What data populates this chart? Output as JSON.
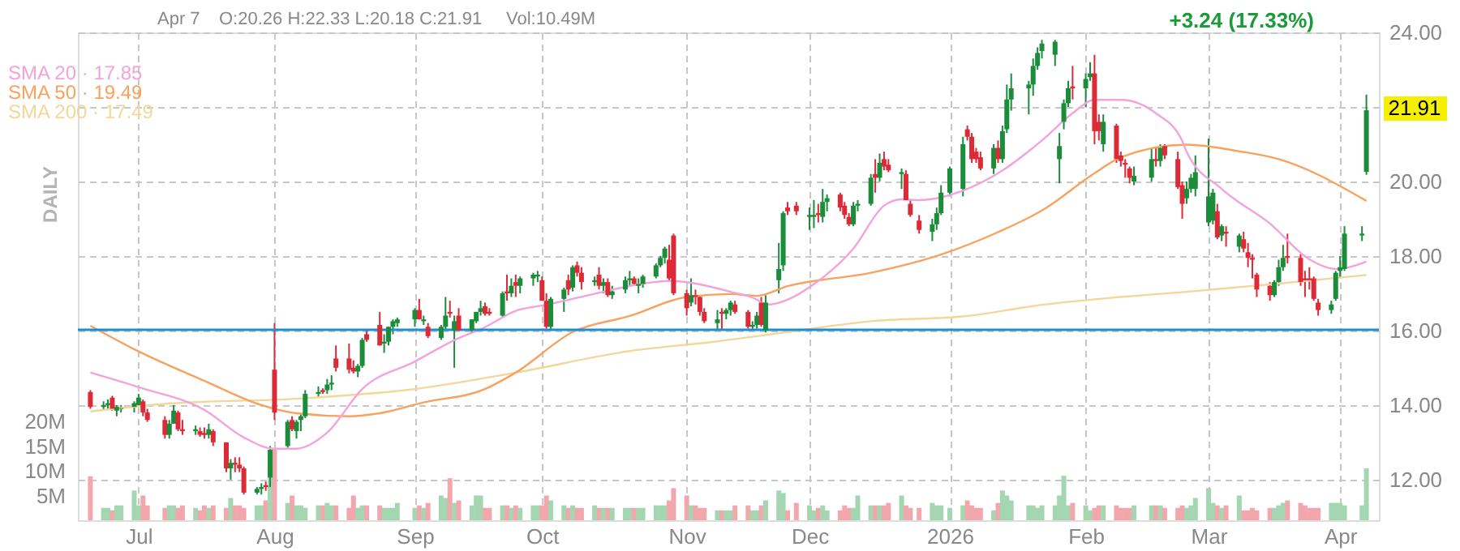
{
  "chart_data": {
    "type": "candlestick",
    "x": [
      "2025-06-20",
      "2025-06-23",
      "2025-06-24",
      "2025-06-25",
      "2025-06-26",
      "2025-06-27",
      "2025-06-30",
      "2025-07-01",
      "2025-07-02",
      "2025-07-03",
      "2025-07-07",
      "2025-07-08",
      "2025-07-09",
      "2025-07-10",
      "2025-07-11",
      "2025-07-14",
      "2025-07-15",
      "2025-07-16",
      "2025-07-17",
      "2025-07-18",
      "2025-07-21",
      "2025-07-22",
      "2025-07-23",
      "2025-07-24",
      "2025-07-25",
      "2025-07-28",
      "2025-07-29",
      "2025-07-30",
      "2025-07-31",
      "2025-08-01",
      "2025-08-04",
      "2025-08-05",
      "2025-08-06",
      "2025-08-07",
      "2025-08-08",
      "2025-08-11",
      "2025-08-12",
      "2025-08-13",
      "2025-08-14",
      "2025-08-15",
      "2025-08-18",
      "2025-08-19",
      "2025-08-20",
      "2025-08-21",
      "2025-08-22",
      "2025-08-25",
      "2025-08-26",
      "2025-08-27",
      "2025-08-28",
      "2025-08-29",
      "2025-09-02",
      "2025-09-03",
      "2025-09-04",
      "2025-09-05",
      "2025-09-08",
      "2025-09-09",
      "2025-09-10",
      "2025-09-11",
      "2025-09-12",
      "2025-09-15",
      "2025-09-16",
      "2025-09-17",
      "2025-09-18",
      "2025-09-19",
      "2025-09-22",
      "2025-09-23",
      "2025-09-24",
      "2025-09-25",
      "2025-09-26",
      "2025-09-29",
      "2025-09-30",
      "2025-10-01",
      "2025-10-02",
      "2025-10-03",
      "2025-10-06",
      "2025-10-07",
      "2025-10-08",
      "2025-10-09",
      "2025-10-10",
      "2025-10-13",
      "2025-10-14",
      "2025-10-15",
      "2025-10-16",
      "2025-10-17",
      "2025-10-20",
      "2025-10-21",
      "2025-10-22",
      "2025-10-23",
      "2025-10-24",
      "2025-10-27",
      "2025-10-28",
      "2025-10-29",
      "2025-10-30",
      "2025-10-31",
      "2025-11-03",
      "2025-11-04",
      "2025-11-05",
      "2025-11-06",
      "2025-11-07",
      "2025-11-10",
      "2025-11-11",
      "2025-11-12",
      "2025-11-13",
      "2025-11-14",
      "2025-11-17",
      "2025-11-18",
      "2025-11-19",
      "2025-11-20",
      "2025-11-21",
      "2025-11-24",
      "2025-11-25",
      "2025-11-26",
      "2025-11-28",
      "2025-12-01",
      "2025-12-02",
      "2025-12-03",
      "2025-12-04",
      "2025-12-05",
      "2025-12-08",
      "2025-12-09",
      "2025-12-10",
      "2025-12-11",
      "2025-12-12",
      "2025-12-15",
      "2025-12-16",
      "2025-12-17",
      "2025-12-18",
      "2025-12-19",
      "2025-12-22",
      "2025-12-23",
      "2025-12-24",
      "2025-12-26",
      "2025-12-29",
      "2025-12-30",
      "2025-12-31",
      "2026-01-02",
      "2026-01-05",
      "2026-01-06",
      "2026-01-07",
      "2026-01-08",
      "2026-01-09",
      "2026-01-12",
      "2026-01-13",
      "2026-01-14",
      "2026-01-15",
      "2026-01-16",
      "2026-01-20",
      "2026-01-21",
      "2026-01-22",
      "2026-01-23",
      "2026-01-26",
      "2026-01-27",
      "2026-01-28",
      "2026-01-29",
      "2026-01-30",
      "2026-02-02",
      "2026-02-03",
      "2026-02-04",
      "2026-02-05",
      "2026-02-06",
      "2026-02-09",
      "2026-02-10",
      "2026-02-11",
      "2026-02-12",
      "2026-02-13",
      "2026-02-17",
      "2026-02-18",
      "2026-02-19",
      "2026-02-20",
      "2026-02-23",
      "2026-02-24",
      "2026-02-25",
      "2026-02-26",
      "2026-02-27",
      "2026-03-02",
      "2026-03-03",
      "2026-03-04",
      "2026-03-05",
      "2026-03-06",
      "2026-03-09",
      "2026-03-10",
      "2026-03-11",
      "2026-03-12",
      "2026-03-13",
      "2026-03-16",
      "2026-03-17",
      "2026-03-18",
      "2026-03-19",
      "2026-03-20",
      "2026-03-23",
      "2026-03-24",
      "2026-03-25",
      "2026-03-26",
      "2026-03-27",
      "2026-03-30",
      "2026-03-31",
      "2026-04-01",
      "2026-04-02",
      "2026-04-06",
      "2026-04-07"
    ],
    "ohlc": [
      [
        14.35,
        14.4,
        13.9,
        13.95
      ],
      [
        13.95,
        14.1,
        13.85,
        14.0
      ],
      [
        14.0,
        14.15,
        13.9,
        14.05
      ],
      [
        14.2,
        14.25,
        13.85,
        13.9
      ],
      [
        13.85,
        14.0,
        13.7,
        13.95
      ],
      [
        13.9,
        14.0,
        13.8,
        13.92
      ],
      [
        13.95,
        14.1,
        13.8,
        14.05
      ],
      [
        14.0,
        14.3,
        13.95,
        14.2
      ],
      [
        14.1,
        14.15,
        13.7,
        13.8
      ],
      [
        13.8,
        13.9,
        13.55,
        13.6
      ],
      [
        13.6,
        13.7,
        13.1,
        13.2
      ],
      [
        13.2,
        13.6,
        13.1,
        13.5
      ],
      [
        13.5,
        14.0,
        13.5,
        13.85
      ],
      [
        13.8,
        13.85,
        13.3,
        13.35
      ],
      [
        13.35,
        13.6,
        13.2,
        13.3
      ],
      [
        13.3,
        13.45,
        13.2,
        13.35
      ],
      [
        13.3,
        13.4,
        13.15,
        13.2
      ],
      [
        13.25,
        13.4,
        13.1,
        13.2
      ],
      [
        13.2,
        13.5,
        13.1,
        13.35
      ],
      [
        13.3,
        13.35,
        12.9,
        13.0
      ],
      [
        13.0,
        13.0,
        12.2,
        12.3
      ],
      [
        12.3,
        12.55,
        12.0,
        12.45
      ],
      [
        12.45,
        12.6,
        12.2,
        12.4
      ],
      [
        12.4,
        12.6,
        12.2,
        12.3
      ],
      [
        12.3,
        12.35,
        11.6,
        11.65
      ],
      [
        11.65,
        11.8,
        11.6,
        11.75
      ],
      [
        11.75,
        11.9,
        11.6,
        11.8
      ],
      [
        11.85,
        11.95,
        11.7,
        11.8
      ],
      [
        12.05,
        12.9,
        11.8,
        12.8
      ],
      [
        14.95,
        16.2,
        13.6,
        13.8
      ],
      [
        12.9,
        13.6,
        12.85,
        13.55
      ],
      [
        13.6,
        13.7,
        13.3,
        13.35
      ],
      [
        13.3,
        13.6,
        13.1,
        13.55
      ],
      [
        13.6,
        13.75,
        13.3,
        13.7
      ],
      [
        13.7,
        14.4,
        13.65,
        14.3
      ],
      [
        14.3,
        14.5,
        14.2,
        14.35
      ],
      [
        14.4,
        14.45,
        14.3,
        14.35
      ],
      [
        14.4,
        14.7,
        14.3,
        14.55
      ],
      [
        14.55,
        14.8,
        14.4,
        14.6
      ],
      [
        15.25,
        15.6,
        14.9,
        15.0
      ],
      [
        15.25,
        15.65,
        14.85,
        14.95
      ],
      [
        15.0,
        15.2,
        14.85,
        14.9
      ],
      [
        14.9,
        15.1,
        14.75,
        15.05
      ],
      [
        15.05,
        15.8,
        15.0,
        15.75
      ],
      [
        15.9,
        16.0,
        15.7,
        15.75
      ],
      [
        16.15,
        16.5,
        15.6,
        15.6
      ],
      [
        15.65,
        15.9,
        15.4,
        15.7
      ],
      [
        15.7,
        16.1,
        15.6,
        16.1
      ],
      [
        16.1,
        16.3,
        15.9,
        16.25
      ],
      [
        16.2,
        16.35,
        16.1,
        16.3
      ],
      [
        16.3,
        16.6,
        16.1,
        16.55
      ],
      [
        16.55,
        16.85,
        16.3,
        16.3
      ],
      [
        16.25,
        16.4,
        16.15,
        16.3
      ],
      [
        16.1,
        16.2,
        15.8,
        15.85
      ],
      [
        15.8,
        16.15,
        15.75,
        16.1
      ],
      [
        16.1,
        16.9,
        16.0,
        16.4
      ],
      [
        16.5,
        16.8,
        16.35,
        16.45
      ],
      [
        16.0,
        16.4,
        15.0,
        16.25
      ],
      [
        16.4,
        16.6,
        16.0,
        16.0
      ],
      [
        16.0,
        16.3,
        15.95,
        16.3
      ],
      [
        16.25,
        16.5,
        16.2,
        16.5
      ],
      [
        16.5,
        16.8,
        16.4,
        16.6
      ],
      [
        16.65,
        16.75,
        16.4,
        16.45
      ],
      [
        16.5,
        16.6,
        16.4,
        16.45
      ],
      [
        16.4,
        17.05,
        16.35,
        17.0
      ],
      [
        17.05,
        17.5,
        16.8,
        17.0
      ],
      [
        17.0,
        17.4,
        16.9,
        17.2
      ],
      [
        17.3,
        17.5,
        16.9,
        17.2
      ],
      [
        17.2,
        17.45,
        17.0,
        17.4
      ],
      [
        17.4,
        17.55,
        17.2,
        17.5
      ],
      [
        17.45,
        17.6,
        17.3,
        17.5
      ],
      [
        17.35,
        17.45,
        16.8,
        16.8
      ],
      [
        16.8,
        17.0,
        16.05,
        16.1
      ],
      [
        16.1,
        16.9,
        16.0,
        16.85
      ],
      [
        16.85,
        17.15,
        16.5,
        17.1
      ],
      [
        17.35,
        17.5,
        16.95,
        17.1
      ],
      [
        17.15,
        17.75,
        17.05,
        17.7
      ],
      [
        17.75,
        17.85,
        17.45,
        17.55
      ],
      [
        17.55,
        17.7,
        17.1,
        17.3
      ],
      [
        17.3,
        17.45,
        17.2,
        17.35
      ],
      [
        17.5,
        17.7,
        17.1,
        17.2
      ],
      [
        17.2,
        17.4,
        17.0,
        17.3
      ],
      [
        17.3,
        17.4,
        16.9,
        16.95
      ],
      [
        16.95,
        17.2,
        16.85,
        17.05
      ],
      [
        17.1,
        17.45,
        17.0,
        17.35
      ],
      [
        17.35,
        17.6,
        17.2,
        17.4
      ],
      [
        17.4,
        17.45,
        17.2,
        17.25
      ],
      [
        17.2,
        17.4,
        17.0,
        17.25
      ],
      [
        17.25,
        17.5,
        17.15,
        17.45
      ],
      [
        17.45,
        17.8,
        17.4,
        17.75
      ],
      [
        17.75,
        18.0,
        17.7,
        17.95
      ],
      [
        17.95,
        18.25,
        17.8,
        18.2
      ],
      [
        17.9,
        18.3,
        17.3,
        17.4
      ],
      [
        18.55,
        18.6,
        16.95,
        17.0
      ],
      [
        17.0,
        17.1,
        16.4,
        16.6
      ],
      [
        16.75,
        17.4,
        16.65,
        16.95
      ],
      [
        16.95,
        17.1,
        16.7,
        16.9
      ],
      [
        16.9,
        16.95,
        16.4,
        16.5
      ],
      [
        16.5,
        16.6,
        16.2,
        16.25
      ],
      [
        16.2,
        16.55,
        16.0,
        16.3
      ],
      [
        16.5,
        16.6,
        16.0,
        16.45
      ],
      [
        16.45,
        16.6,
        16.3,
        16.55
      ],
      [
        16.55,
        16.8,
        16.4,
        16.75
      ],
      [
        16.7,
        16.8,
        16.45,
        16.5
      ],
      [
        16.5,
        16.55,
        16.05,
        16.1
      ],
      [
        16.1,
        16.25,
        16.0,
        16.15
      ],
      [
        16.15,
        16.5,
        16.05,
        16.4
      ],
      [
        16.75,
        16.9,
        16.1,
        16.15
      ],
      [
        16.0,
        16.95,
        15.95,
        16.75
      ],
      [
        17.35,
        18.35,
        17.0,
        17.65
      ],
      [
        17.75,
        19.2,
        17.6,
        19.15
      ],
      [
        19.3,
        19.45,
        19.1,
        19.2
      ],
      [
        19.35,
        19.45,
        19.1,
        19.2
      ],
      [
        19.05,
        19.3,
        18.7,
        19.1
      ],
      [
        19.05,
        19.5,
        18.75,
        19.1
      ],
      [
        19.15,
        19.4,
        18.9,
        19.1
      ],
      [
        19.05,
        19.8,
        18.9,
        19.45
      ],
      [
        19.45,
        19.65,
        19.2,
        19.55
      ],
      [
        19.65,
        19.7,
        19.2,
        19.3
      ],
      [
        19.35,
        19.45,
        19.0,
        19.1
      ],
      [
        19.05,
        19.15,
        18.8,
        18.85
      ],
      [
        18.85,
        19.45,
        18.8,
        19.35
      ],
      [
        19.35,
        19.5,
        19.2,
        19.4
      ],
      [
        19.4,
        20.2,
        19.35,
        20.1
      ],
      [
        20.2,
        20.6,
        19.7,
        20.1
      ],
      [
        20.1,
        20.75,
        20.0,
        20.5
      ],
      [
        20.6,
        20.8,
        20.3,
        20.4
      ],
      [
        20.45,
        20.6,
        20.25,
        20.3
      ],
      [
        20.2,
        20.35,
        19.8,
        20.25
      ],
      [
        20.2,
        20.3,
        19.5,
        19.5
      ],
      [
        19.4,
        19.5,
        19.05,
        19.1
      ],
      [
        18.95,
        19.1,
        18.6,
        18.7
      ],
      [
        18.65,
        19.0,
        18.4,
        18.85
      ],
      [
        18.85,
        19.3,
        18.7,
        19.15
      ],
      [
        19.15,
        19.9,
        19.1,
        19.7
      ],
      [
        19.7,
        20.4,
        19.6,
        20.35
      ],
      [
        19.8,
        21.2,
        19.6,
        21.0
      ],
      [
        21.4,
        21.5,
        21.1,
        21.2
      ],
      [
        21.2,
        21.3,
        20.5,
        20.6
      ],
      [
        20.8,
        20.9,
        20.5,
        20.6
      ],
      [
        20.65,
        20.8,
        20.3,
        20.35
      ],
      [
        20.35,
        21.0,
        20.2,
        20.9
      ],
      [
        20.9,
        21.1,
        20.5,
        20.6
      ],
      [
        20.6,
        21.5,
        20.5,
        21.35
      ],
      [
        21.4,
        22.6,
        21.3,
        22.2
      ],
      [
        22.2,
        22.9,
        21.9,
        22.5
      ],
      [
        22.5,
        22.7,
        21.8,
        22.6
      ],
      [
        22.6,
        23.3,
        22.3,
        23.1
      ],
      [
        23.1,
        23.6,
        23.0,
        23.45
      ],
      [
        23.5,
        23.8,
        23.3,
        23.7
      ],
      [
        23.4,
        23.8,
        23.1,
        23.75
      ],
      [
        20.6,
        21.3,
        19.95,
        20.95
      ],
      [
        21.6,
        22.2,
        21.4,
        22.1
      ],
      [
        22.1,
        22.7,
        22.0,
        22.5
      ],
      [
        22.55,
        23.1,
        22.2,
        22.5
      ],
      [
        22.5,
        22.9,
        22.0,
        22.75
      ],
      [
        22.8,
        23.2,
        22.7,
        22.9
      ],
      [
        22.9,
        23.4,
        21.0,
        21.35
      ],
      [
        21.6,
        21.8,
        21.1,
        21.35
      ],
      [
        21.0,
        21.8,
        20.8,
        21.6
      ],
      [
        21.5,
        21.55,
        20.5,
        20.6
      ],
      [
        20.7,
        20.8,
        20.4,
        20.55
      ],
      [
        20.5,
        20.6,
        20.1,
        20.45
      ],
      [
        20.35,
        20.4,
        19.95,
        20.1
      ],
      [
        20.0,
        20.4,
        19.9,
        20.15
      ],
      [
        20.1,
        20.9,
        20.0,
        20.6
      ],
      [
        20.6,
        20.9,
        20.4,
        20.55
      ],
      [
        20.55,
        21.0,
        20.4,
        20.9
      ],
      [
        20.95,
        21.0,
        20.6,
        20.7
      ],
      [
        20.6,
        20.8,
        19.8,
        19.85
      ],
      [
        19.9,
        20.0,
        19.0,
        19.4
      ],
      [
        19.55,
        20.0,
        19.4,
        19.8
      ],
      [
        19.8,
        20.2,
        19.7,
        20.1
      ],
      [
        19.8,
        20.7,
        19.6,
        20.25
      ],
      [
        18.9,
        21.15,
        18.8,
        19.6
      ],
      [
        18.95,
        19.8,
        18.85,
        19.7
      ],
      [
        19.2,
        19.4,
        18.45,
        18.5
      ],
      [
        18.55,
        18.85,
        18.4,
        18.8
      ],
      [
        18.65,
        18.8,
        18.25,
        18.6
      ],
      [
        18.25,
        18.6,
        18.1,
        18.55
      ],
      [
        18.45,
        18.65,
        18.1,
        18.2
      ],
      [
        18.1,
        18.35,
        17.7,
        17.95
      ],
      [
        17.95,
        18.05,
        17.4,
        17.9
      ],
      [
        17.5,
        17.55,
        16.9,
        17.1
      ],
      [
        17.2,
        17.3,
        16.8,
        16.95
      ],
      [
        16.95,
        17.35,
        16.9,
        17.3
      ],
      [
        17.3,
        17.9,
        17.2,
        17.7
      ],
      [
        17.7,
        18.3,
        17.6,
        17.95
      ],
      [
        18.0,
        18.6,
        17.8,
        17.95
      ],
      [
        17.95,
        18.05,
        17.2,
        17.3
      ],
      [
        17.4,
        17.6,
        16.9,
        17.35
      ],
      [
        17.4,
        17.7,
        17.1,
        17.35
      ],
      [
        17.4,
        17.45,
        16.8,
        16.85
      ],
      [
        16.75,
        16.85,
        16.4,
        16.55
      ],
      [
        16.55,
        16.8,
        16.45,
        16.7
      ],
      [
        16.85,
        17.6,
        16.8,
        17.55
      ],
      [
        17.6,
        18.0,
        17.4,
        17.7
      ],
      [
        17.65,
        18.8,
        17.6,
        18.6
      ],
      [
        18.55,
        18.8,
        18.4,
        18.6
      ],
      [
        20.26,
        22.33,
        20.18,
        21.91
      ]
    ],
    "colors": [
      "#dc2a36",
      "#1b8c3a",
      "#1b8c3a",
      "#dc2a36",
      "#1b8c3a",
      "#1b8c3a",
      "#1b8c3a",
      "#1b8c3a",
      "#dc2a36",
      "#dc2a36",
      "#dc2a36",
      "#1b8c3a",
      "#1b8c3a",
      "#dc2a36",
      "#dc2a36",
      "#1b8c3a",
      "#dc2a36",
      "#dc2a36",
      "#1b8c3a",
      "#dc2a36",
      "#dc2a36",
      "#1b8c3a",
      "#dc2a36",
      "#dc2a36",
      "#dc2a36",
      "#1b8c3a",
      "#1b8c3a",
      "#dc2a36",
      "#1b8c3a",
      "#dc2a36",
      "#1b8c3a",
      "#dc2a36",
      "#1b8c3a",
      "#1b8c3a",
      "#1b8c3a",
      "#1b8c3a",
      "#dc2a36",
      "#1b8c3a",
      "#1b8c3a",
      "#dc2a36",
      "#dc2a36",
      "#dc2a36",
      "#1b8c3a",
      "#1b8c3a",
      "#dc2a36",
      "#dc2a36",
      "#1b8c3a",
      "#1b8c3a",
      "#1b8c3a",
      "#1b8c3a",
      "#1b8c3a",
      "#dc2a36",
      "#1b8c3a",
      "#dc2a36",
      "#1b8c3a",
      "#1b8c3a",
      "#dc2a36",
      "#1b8c3a",
      "#dc2a36",
      "#1b8c3a",
      "#1b8c3a",
      "#1b8c3a",
      "#dc2a36",
      "#dc2a36",
      "#1b8c3a",
      "#dc2a36",
      "#1b8c3a",
      "#dc2a36",
      "#1b8c3a",
      "#1b8c3a",
      "#1b8c3a",
      "#dc2a36",
      "#dc2a36",
      "#1b8c3a",
      "#1b8c3a",
      "#dc2a36",
      "#1b8c3a",
      "#dc2a36",
      "#dc2a36",
      "#1b8c3a",
      "#dc2a36",
      "#1b8c3a",
      "#dc2a36",
      "#1b8c3a",
      "#1b8c3a",
      "#1b8c3a",
      "#dc2a36",
      "#1b8c3a",
      "#1b8c3a",
      "#1b8c3a",
      "#1b8c3a",
      "#1b8c3a",
      "#dc2a36",
      "#dc2a36",
      "#dc2a36",
      "#1b8c3a",
      "#dc2a36",
      "#dc2a36",
      "#dc2a36",
      "#1b8c3a",
      "#dc2a36",
      "#1b8c3a",
      "#1b8c3a",
      "#dc2a36",
      "#dc2a36",
      "#1b8c3a",
      "#1b8c3a",
      "#dc2a36",
      "#1b8c3a",
      "#1b8c3a",
      "#1b8c3a",
      "#dc2a36",
      "#dc2a36",
      "#1b8c3a",
      "#1b8c3a",
      "#dc2a36",
      "#1b8c3a",
      "#1b8c3a",
      "#dc2a36",
      "#dc2a36",
      "#dc2a36",
      "#1b8c3a",
      "#1b8c3a",
      "#1b8c3a",
      "#dc2a36",
      "#1b8c3a",
      "#dc2a36",
      "#dc2a36",
      "#1b8c3a",
      "#dc2a36",
      "#dc2a36",
      "#dc2a36",
      "#1b8c3a",
      "#1b8c3a",
      "#1b8c3a",
      "#1b8c3a",
      "#1b8c3a",
      "#dc2a36",
      "#dc2a36",
      "#dc2a36",
      "#dc2a36",
      "#1b8c3a",
      "#dc2a36",
      "#1b8c3a",
      "#1b8c3a",
      "#1b8c3a",
      "#1b8c3a",
      "#1b8c3a",
      "#1b8c3a",
      "#1b8c3a",
      "#1b8c3a",
      "#1b8c3a",
      "#1b8c3a",
      "#1b8c3a",
      "#dc2a36",
      "#1b8c3a",
      "#1b8c3a",
      "#dc2a36",
      "#dc2a36",
      "#1b8c3a",
      "#dc2a36",
      "#dc2a36",
      "#dc2a36",
      "#dc2a36",
      "#1b8c3a",
      "#1b8c3a",
      "#dc2a36",
      "#1b8c3a",
      "#dc2a36",
      "#dc2a36",
      "#dc2a36",
      "#1b8c3a",
      "#1b8c3a",
      "#1b8c3a",
      "#1b8c3a",
      "#1b8c3a",
      "#dc2a36",
      "#1b8c3a",
      "#dc2a36",
      "#1b8c3a",
      "#dc2a36",
      "#dc2a36",
      "#dc2a36",
      "#dc2a36",
      "#dc2a36",
      "#1b8c3a",
      "#1b8c3a",
      "#1b8c3a",
      "#dc2a36",
      "#dc2a36",
      "#dc2a36",
      "#dc2a36",
      "#dc2a36",
      "#dc2a36",
      "#1b8c3a",
      "#1b8c3a",
      "#1b8c3a",
      "#1b8c3a",
      "#1b8c3a",
      "#1b8c3a"
    ],
    "series": [
      {
        "type": "bar",
        "axis": "y2",
        "colors": [
          "#f2a7ad",
          "#a3d6b1",
          "#a3d6b1",
          "#f2a7ad",
          "#a3d6b1",
          "#a3d6b1",
          "#a3d6b1",
          "#a3d6b1",
          "#f2a7ad",
          "#f2a7ad",
          "#f2a7ad",
          "#a3d6b1",
          "#a3d6b1",
          "#f2a7ad",
          "#f2a7ad",
          "#a3d6b1",
          "#f2a7ad",
          "#f2a7ad",
          "#a3d6b1",
          "#f2a7ad",
          "#f2a7ad",
          "#a3d6b1",
          "#f2a7ad",
          "#f2a7ad",
          "#f2a7ad",
          "#a3d6b1",
          "#a3d6b1",
          "#f2a7ad",
          "#a3d6b1",
          "#f2a7ad",
          "#a3d6b1",
          "#f2a7ad",
          "#a3d6b1",
          "#a3d6b1",
          "#a3d6b1",
          "#a3d6b1",
          "#f2a7ad",
          "#a3d6b1",
          "#a3d6b1",
          "#f2a7ad",
          "#f2a7ad",
          "#f2a7ad",
          "#a3d6b1",
          "#a3d6b1",
          "#f2a7ad",
          "#f2a7ad",
          "#a3d6b1",
          "#a3d6b1",
          "#a3d6b1",
          "#a3d6b1",
          "#a3d6b1",
          "#f2a7ad",
          "#a3d6b1",
          "#f2a7ad",
          "#a3d6b1",
          "#a3d6b1",
          "#f2a7ad",
          "#a3d6b1",
          "#f2a7ad",
          "#a3d6b1",
          "#a3d6b1",
          "#a3d6b1",
          "#f2a7ad",
          "#f2a7ad",
          "#a3d6b1",
          "#f2a7ad",
          "#a3d6b1",
          "#f2a7ad",
          "#a3d6b1",
          "#a3d6b1",
          "#a3d6b1",
          "#f2a7ad",
          "#f2a7ad",
          "#a3d6b1",
          "#a3d6b1",
          "#f2a7ad",
          "#a3d6b1",
          "#f2a7ad",
          "#f2a7ad",
          "#a3d6b1",
          "#f2a7ad",
          "#a3d6b1",
          "#f2a7ad",
          "#a3d6b1",
          "#a3d6b1",
          "#a3d6b1",
          "#f2a7ad",
          "#a3d6b1",
          "#a3d6b1",
          "#a3d6b1",
          "#a3d6b1",
          "#a3d6b1",
          "#f2a7ad",
          "#f2a7ad",
          "#f2a7ad",
          "#a3d6b1",
          "#f2a7ad",
          "#f2a7ad",
          "#f2a7ad",
          "#a3d6b1",
          "#f2a7ad",
          "#a3d6b1",
          "#a3d6b1",
          "#f2a7ad",
          "#f2a7ad",
          "#a3d6b1",
          "#a3d6b1",
          "#f2a7ad",
          "#a3d6b1",
          "#a3d6b1",
          "#a3d6b1",
          "#f2a7ad",
          "#f2a7ad",
          "#a3d6b1",
          "#a3d6b1",
          "#f2a7ad",
          "#a3d6b1",
          "#a3d6b1",
          "#f2a7ad",
          "#f2a7ad",
          "#f2a7ad",
          "#a3d6b1",
          "#a3d6b1",
          "#a3d6b1",
          "#f2a7ad",
          "#a3d6b1",
          "#f2a7ad",
          "#f2a7ad",
          "#a3d6b1",
          "#f2a7ad",
          "#f2a7ad",
          "#f2a7ad",
          "#a3d6b1",
          "#a3d6b1",
          "#a3d6b1",
          "#a3d6b1",
          "#a3d6b1",
          "#f2a7ad",
          "#f2a7ad",
          "#f2a7ad",
          "#f2a7ad",
          "#a3d6b1",
          "#f2a7ad",
          "#a3d6b1",
          "#a3d6b1",
          "#a3d6b1",
          "#a3d6b1",
          "#a3d6b1",
          "#a3d6b1",
          "#a3d6b1",
          "#a3d6b1",
          "#a3d6b1",
          "#a3d6b1",
          "#a3d6b1",
          "#f2a7ad",
          "#a3d6b1",
          "#a3d6b1",
          "#f2a7ad",
          "#f2a7ad",
          "#a3d6b1",
          "#f2a7ad",
          "#f2a7ad",
          "#f2a7ad",
          "#f2a7ad",
          "#a3d6b1",
          "#a3d6b1",
          "#f2a7ad",
          "#a3d6b1",
          "#f2a7ad",
          "#f2a7ad",
          "#f2a7ad",
          "#a3d6b1",
          "#a3d6b1",
          "#a3d6b1",
          "#a3d6b1",
          "#a3d6b1",
          "#f2a7ad",
          "#a3d6b1",
          "#f2a7ad",
          "#a3d6b1",
          "#f2a7ad",
          "#f2a7ad",
          "#f2a7ad",
          "#f2a7ad",
          "#f2a7ad",
          "#a3d6b1",
          "#a3d6b1",
          "#a3d6b1",
          "#f2a7ad",
          "#f2a7ad",
          "#f2a7ad",
          "#f2a7ad",
          "#f2a7ad",
          "#f2a7ad",
          "#a3d6b1",
          "#a3d6b1",
          "#a3d6b1",
          "#a3d6b1",
          "#a3d6b1",
          "#a3d6b1"
        ],
        "values": [
          8.9,
          2.5,
          2.5,
          2,
          3,
          3,
          6,
          3,
          5,
          3,
          2.5,
          3,
          3,
          2.5,
          3,
          2.5,
          2,
          3,
          2.5,
          3,
          2.5,
          4.5,
          3,
          3,
          2.5,
          3,
          3,
          4,
          8.5,
          14.5,
          3.5,
          5,
          3,
          3,
          2.5,
          3,
          3,
          3.5,
          3,
          3,
          2.5,
          5,
          2.5,
          3,
          3,
          3,
          2.5,
          2.5,
          2.5,
          3.5,
          2.5,
          3,
          2.5,
          3.5,
          5,
          4.5,
          8.5,
          3.5,
          4,
          3,
          5,
          5,
          2.5,
          2.5,
          3,
          3,
          2.5,
          3,
          2.5,
          3,
          3,
          3,
          5,
          4,
          3,
          2.5,
          3,
          2.5,
          2.5,
          3,
          2.5,
          2.5,
          2.5,
          2.5,
          2.5,
          2.5,
          2.5,
          2.5,
          2.5,
          3,
          3,
          3,
          4,
          6.5,
          5,
          3,
          3,
          2.5,
          2.5,
          2,
          2,
          2,
          2,
          3,
          3,
          2,
          2,
          3,
          4,
          6,
          5.5,
          2,
          3.5,
          3,
          2,
          2.5,
          3,
          2,
          2,
          3,
          2.5,
          2.5,
          5,
          3,
          3,
          3,
          3,
          3.5,
          5,
          3,
          2.5,
          2.5,
          3.5,
          3,
          3,
          2.5,
          3,
          4,
          3,
          2.5,
          2.5,
          2,
          3.5,
          6,
          5,
          4,
          3,
          3,
          2.5,
          3,
          3,
          5,
          9,
          3,
          3.5,
          3,
          2,
          2.5,
          3,
          3,
          3,
          2.5,
          2.5,
          2.5,
          3,
          3,
          3,
          3,
          2.5,
          2.5,
          3,
          2.5,
          3,
          4.5,
          6.5,
          3.5,
          3,
          2.5,
          3,
          5,
          2,
          2,
          2.5,
          2,
          2.5,
          2.5,
          3,
          3.5,
          4,
          3.5,
          3,
          2.5,
          2.5,
          2.5,
          3.5,
          3.5,
          3.5,
          3,
          3,
          10.49
        ]
      },
      {
        "type": "line",
        "name": "SMA 200 · 17.49",
        "color": "#f3d79a",
        "x": [
          "2025-06-20",
          "2025-07-08",
          "2025-08-06",
          "2025-09-02",
          "2025-09-25",
          "2025-10-21",
          "2025-11-10",
          "2025-11-26",
          "2025-12-15",
          "2026-01-06",
          "2026-01-23",
          "2026-02-10",
          "2026-02-25",
          "2026-03-18",
          "2026-04-07"
        ],
        "values": [
          13.83,
          14.04,
          14.17,
          14.43,
          14.87,
          15.45,
          15.71,
          15.96,
          16.25,
          16.39,
          16.69,
          16.9,
          17.04,
          17.26,
          17.49
        ]
      },
      {
        "type": "line",
        "name": "SMA 50 · 19.49",
        "color": "#f7a25e",
        "x": [
          "2025-06-20",
          "2025-07-01",
          "2025-07-16",
          "2025-07-29",
          "2025-08-06",
          "2025-08-18",
          "2025-08-25",
          "2025-09-04",
          "2025-09-18",
          "2025-09-25",
          "2025-10-08",
          "2025-10-21",
          "2025-11-03",
          "2025-11-13",
          "2025-11-19",
          "2025-11-26",
          "2025-12-15",
          "2025-12-31",
          "2026-01-13",
          "2026-01-23",
          "2026-02-04",
          "2026-02-10",
          "2026-02-25",
          "2026-03-09",
          "2026-03-18",
          "2026-04-07"
        ],
        "values": [
          16.13,
          15.44,
          14.65,
          14.0,
          13.78,
          13.7,
          13.78,
          14.07,
          14.43,
          14.87,
          15.96,
          16.39,
          16.9,
          16.98,
          16.93,
          17.19,
          17.55,
          18.04,
          18.64,
          19.22,
          20.22,
          20.65,
          20.99,
          20.81,
          20.6,
          19.48
        ]
      },
      {
        "type": "line",
        "name": "SMA 20 · 17.85",
        "color": "#f2a3dc",
        "x": [
          "2025-06-20",
          "2025-07-01",
          "2025-07-16",
          "2025-07-25",
          "2025-08-01",
          "2025-08-06",
          "2025-08-13",
          "2025-08-21",
          "2025-09-02",
          "2025-09-11",
          "2025-09-18",
          "2025-09-25",
          "2025-10-02",
          "2025-10-15",
          "2025-10-24",
          "2025-10-30",
          "2025-11-13",
          "2025-11-19",
          "2025-11-21",
          "2025-12-03",
          "2025-12-11",
          "2025-12-18",
          "2025-12-22",
          "2025-12-26",
          "2026-01-06",
          "2026-01-13",
          "2026-01-23",
          "2026-01-30",
          "2026-02-04",
          "2026-02-10",
          "2026-02-18",
          "2026-02-24",
          "2026-02-25",
          "2026-03-05",
          "2026-03-16",
          "2026-03-25",
          "2026-03-31",
          "2026-04-07"
        ],
        "values": [
          14.87,
          14.48,
          13.87,
          13.13,
          12.83,
          12.83,
          13.26,
          14.43,
          15.17,
          15.74,
          16.09,
          16.53,
          16.69,
          17.04,
          17.26,
          17.33,
          17.04,
          16.83,
          16.69,
          17.33,
          18.2,
          19.35,
          19.52,
          19.5,
          19.8,
          20.22,
          21.1,
          21.83,
          22.19,
          22.19,
          21.83,
          21.09,
          20.8,
          19.8,
          18.87,
          17.91,
          17.65,
          17.85
        ]
      }
    ],
    "xlim": [
      "2025-06-19",
      "2026-04-08"
    ],
    "xticks": [
      {
        "value": "2025-07-01",
        "label": "Jul"
      },
      {
        "value": "2025-08-01",
        "label": "Aug"
      },
      {
        "value": "2025-09-02",
        "label": "Sep"
      },
      {
        "value": "2025-10-01",
        "label": "Oct"
      },
      {
        "value": "2025-11-03",
        "label": "Nov"
      },
      {
        "value": "2025-12-01",
        "label": "Dec"
      },
      {
        "value": "2026-01-02",
        "label": "2026"
      },
      {
        "value": "2026-02-02",
        "label": "Feb"
      },
      {
        "value": "2026-03-02",
        "label": "Mar"
      },
      {
        "value": "2026-04-01",
        "label": "Apr"
      }
    ],
    "ylim": [
      10.91,
      24.0
    ],
    "yticks": [
      {
        "value": 12,
        "label": "12.00"
      },
      {
        "value": 14,
        "label": "14.00"
      },
      {
        "value": 16,
        "label": "16.00"
      },
      {
        "value": 18,
        "label": "18.00"
      },
      {
        "value": 20,
        "label": "20.00"
      },
      {
        "value": 22,
        "label": null
      },
      {
        "value": 24,
        "label": "24.00"
      }
    ],
    "y2lim": [
      0,
      98.7
    ],
    "y2ticks": [
      {
        "value": 5,
        "label": "5M"
      },
      {
        "value": 10,
        "label": "10M"
      },
      {
        "value": 15,
        "label": "15M"
      },
      {
        "value": 20,
        "label": "20M"
      }
    ],
    "grid": true,
    "legend": "top left",
    "ref_lines": [
      {
        "axis": "y",
        "value": 16.02,
        "color": "#1b8fd6"
      }
    ],
    "annotations": [
      "Apr 7",
      "O:20.26 H:22.33 L:20.18 C:21.91",
      "Vol:10.49M",
      "+3.24 (17.33%)",
      "DAILY",
      "21.91"
    ]
  }
}
